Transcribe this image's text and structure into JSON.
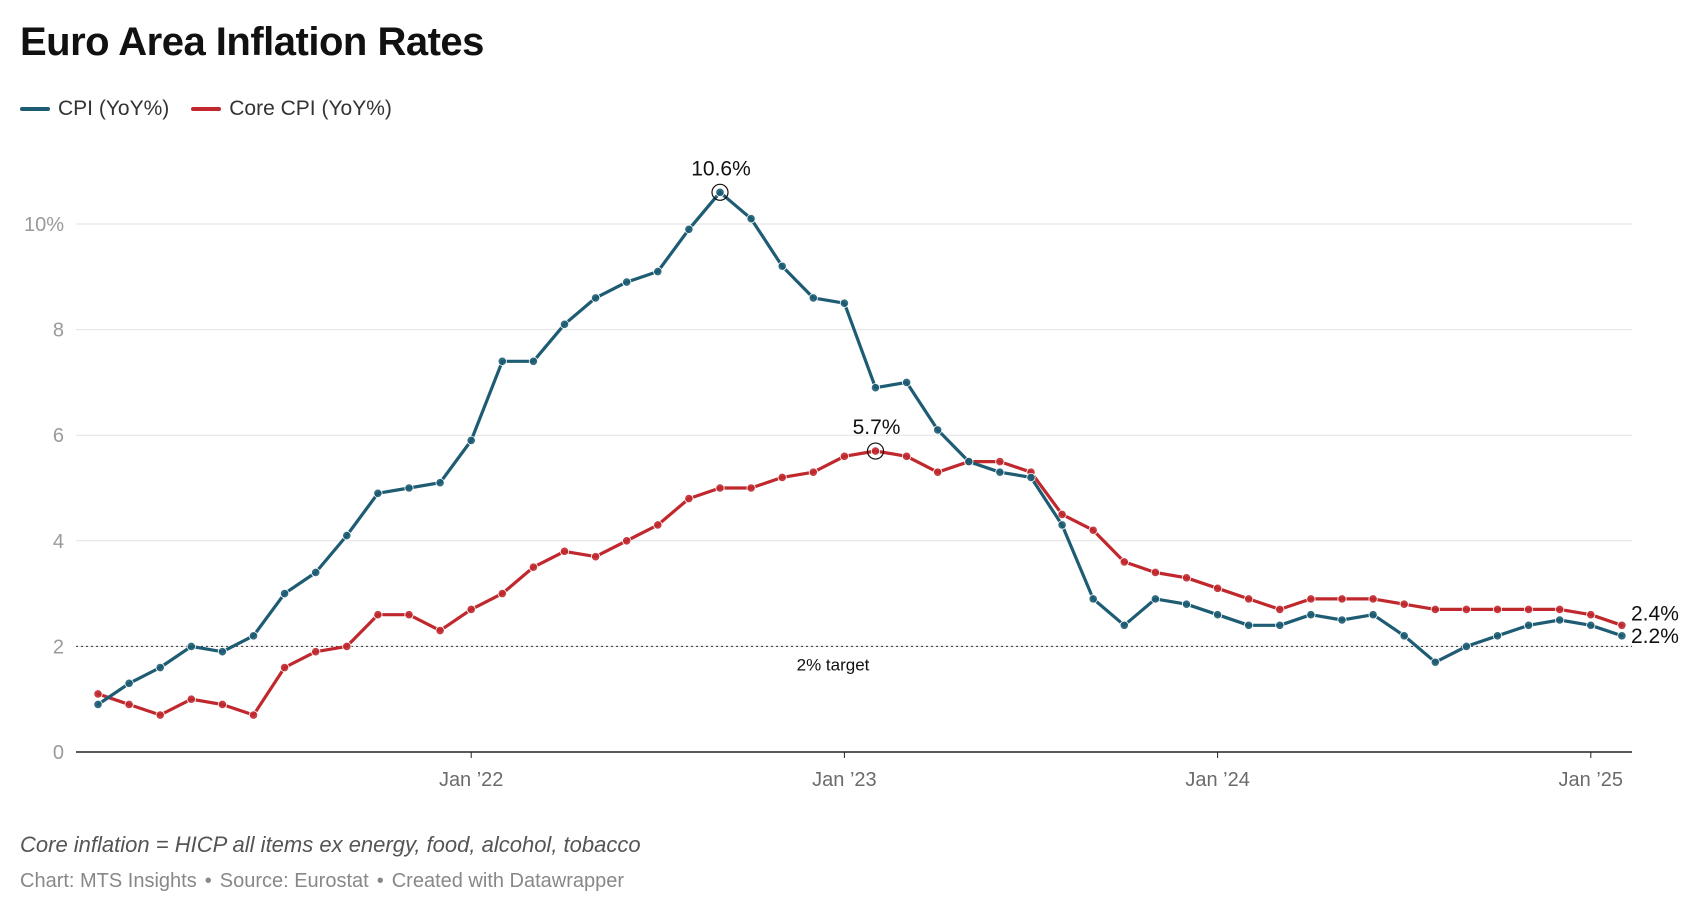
{
  "title": "Euro Area Inflation Rates",
  "legend": [
    {
      "label": "CPI (YoY%)",
      "color": "#1d5c73"
    },
    {
      "label": "Core CPI (YoY%)",
      "color": "#c0282d"
    }
  ],
  "chart_data": {
    "type": "line",
    "title": "Euro Area Inflation Rates",
    "x_start": "2021-01",
    "x_end": "2025-02",
    "x_ticks": [
      {
        "label": "Jan ’22",
        "index": 12
      },
      {
        "label": "Jan ’23",
        "index": 24
      },
      {
        "label": "Jan ’24",
        "index": 36
      },
      {
        "label": "Jan ’25",
        "index": 48
      }
    ],
    "ylim": [
      0,
      11
    ],
    "y_ticks": [
      {
        "value": 0,
        "label": "0"
      },
      {
        "value": 2,
        "label": "2"
      },
      {
        "value": 4,
        "label": "4"
      },
      {
        "value": 6,
        "label": "6"
      },
      {
        "value": 8,
        "label": "8"
      },
      {
        "value": 10,
        "label": "10%"
      }
    ],
    "series": [
      {
        "name": "CPI (YoY%)",
        "color": "#1d5c73",
        "values": [
          0.9,
          1.3,
          1.6,
          2.0,
          1.9,
          2.2,
          3.0,
          3.4,
          4.1,
          4.9,
          5.0,
          5.1,
          5.9,
          7.4,
          7.4,
          8.1,
          8.6,
          8.9,
          9.1,
          9.9,
          10.6,
          10.1,
          9.2,
          8.6,
          8.5,
          6.9,
          7.0,
          6.1,
          5.5,
          5.3,
          5.2,
          4.3,
          2.9,
          2.4,
          2.9,
          2.8,
          2.6,
          2.4,
          2.4,
          2.6,
          2.5,
          2.6,
          2.2,
          1.7,
          2.0,
          2.2,
          2.4,
          2.5,
          2.4,
          2.2
        ],
        "end_label": "2.2%",
        "peak_label": "10.6%",
        "peak_index": 20
      },
      {
        "name": "Core CPI (YoY%)",
        "color": "#c0282d",
        "values": [
          1.1,
          0.9,
          0.7,
          1.0,
          0.9,
          0.7,
          1.6,
          1.9,
          2.0,
          2.6,
          2.6,
          2.3,
          2.7,
          3.0,
          3.5,
          3.8,
          3.7,
          4.0,
          4.3,
          4.8,
          5.0,
          5.0,
          5.2,
          5.3,
          5.6,
          5.7,
          5.6,
          5.3,
          5.5,
          5.5,
          5.3,
          4.5,
          4.2,
          3.6,
          3.4,
          3.3,
          3.1,
          2.9,
          2.7,
          2.9,
          2.9,
          2.9,
          2.8,
          2.7,
          2.7,
          2.7,
          2.7,
          2.7,
          2.6,
          2.4
        ],
        "end_label": "2.4%",
        "peak_label": "5.7%",
        "peak_index": 25
      }
    ],
    "reference_line": {
      "value": 2,
      "label": "2% target"
    }
  },
  "footer": {
    "note": "Core inflation = HICP all items ex energy, food, alcohol, tobacco",
    "credit_chart": "Chart: MTS Insights",
    "credit_source": "Source: Eurostat",
    "credit_tool": "Created with Datawrapper",
    "separator": "•"
  }
}
